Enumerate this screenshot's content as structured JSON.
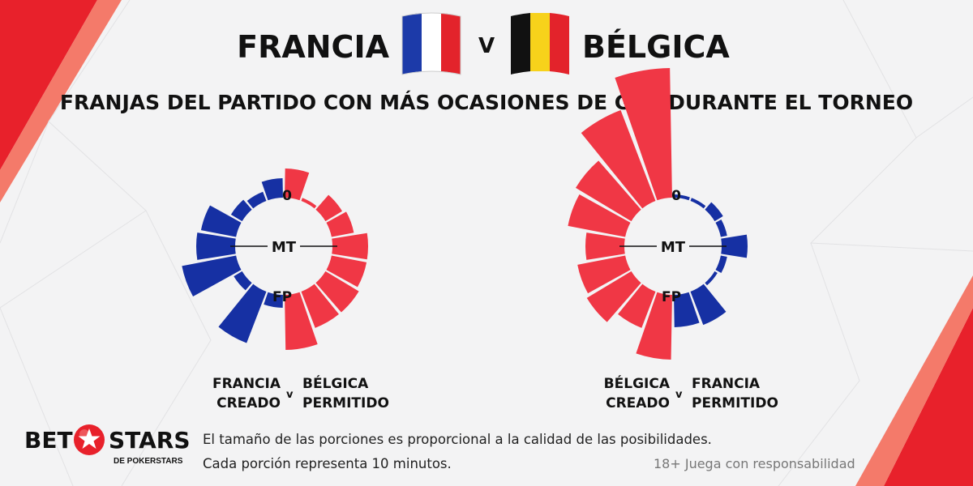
{
  "header": {
    "team_left": "FRANCIA",
    "vs": "V",
    "team_right": "BÉLGICA",
    "subtitle": "FRANJAS DEL PARTIDO CON MÁS OCASIONES DE GOL DURANTE EL TORNEO"
  },
  "colors": {
    "blue": "#1630a3",
    "red": "#f03745",
    "accent_red": "#e8212b"
  },
  "chart_labels": {
    "zero": "0",
    "half": "MT",
    "full": "FP"
  },
  "legends": [
    {
      "left_line1": "FRANCIA",
      "left_line2": "CREADO",
      "vs": "v",
      "right_line1": "BÉLGICA",
      "right_line2": "PERMITIDO"
    },
    {
      "left_line1": "BÉLGICA",
      "left_line2": "CREADO",
      "vs": "v",
      "right_line1": "FRANCIA",
      "right_line2": "PERMITIDO"
    }
  ],
  "chart_data": [
    {
      "type": "radial-bar",
      "slice_minutes": 10,
      "right_half": {
        "series": "BÉLGICA PERMITIDO",
        "color": "#f03745",
        "values": [
          0.45,
          0.05,
          0.3,
          0.35,
          0.55,
          0.55,
          0.6,
          0.6,
          0.85
        ]
      },
      "left_half": {
        "series": "FRANCIA CREADO",
        "color": "#1630a3",
        "values": [
          0.3,
          0.15,
          0.2,
          0.55,
          0.6,
          0.85,
          0.15,
          0.85,
          0.2
        ]
      }
    },
    {
      "type": "radial-bar",
      "slice_minutes": 10,
      "right_half": {
        "series": "FRANCIA PERMITIDO",
        "color": "#1630a3",
        "values": [
          0.05,
          0.05,
          0.15,
          0.1,
          0.4,
          0.1,
          0.05,
          0.55,
          0.5
        ]
      },
      "left_half": {
        "series": "BÉLGICA CREADO",
        "color": "#f03745",
        "values": [
          2.0,
          1.5,
          1.0,
          0.9,
          0.6,
          0.75,
          0.8,
          0.6,
          1.0
        ]
      }
    }
  ],
  "footer": {
    "logo_bet": "BET",
    "logo_stars": "STARS",
    "logo_sub": "DE POKERSTARS",
    "note1": "El tamaño de las porciones es proporcional a la calidad de las posibilidades.",
    "note2": "Cada porción representa 10 minutos.",
    "responsible": "18+ Juega con responsabilidad"
  }
}
